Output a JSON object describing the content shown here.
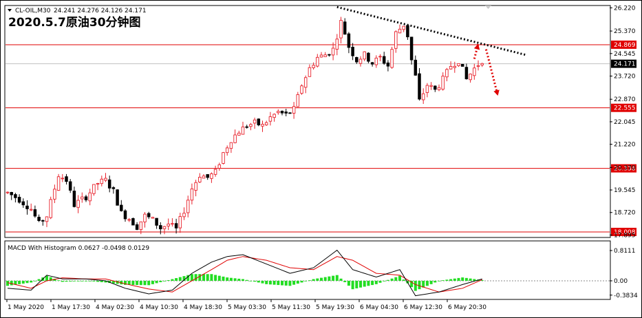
{
  "header": {
    "symbol": "CL-OIL,M30",
    "ohlc": "24.241 24.276 24.126 24.171"
  },
  "title": "2020.5.7原油30分钟图",
  "colors": {
    "bull": "#e8202a",
    "bear": "#000000",
    "level_line": "#e00000",
    "macd_line": "#000000",
    "signal_line": "#e00000",
    "hist_pos": "#22dd22",
    "hist_neg": "#22dd22",
    "trendline": "#000000",
    "arrow": "#e00000"
  },
  "chart_data": [
    {
      "type": "candlestick",
      "price_axis_ticks": [
        "26.220",
        "25.370",
        "24.545",
        "23.720",
        "22.870",
        "22.045",
        "21.220",
        "20.370",
        "19.545",
        "18.720",
        "17.895"
      ],
      "ylim": [
        17.83,
        26.28
      ],
      "current_price": "24.171",
      "levels": [
        {
          "label": "24.869",
          "value": 24.869
        },
        {
          "label": "22.555",
          "value": 22.555
        },
        {
          "label": "20.338",
          "value": 20.338
        },
        {
          "label": "18.008",
          "value": 18.008
        }
      ],
      "time_ticks": [
        "1 May 2020",
        "1 May 17:30",
        "4 May 02:30",
        "4 May 10:30",
        "4 May 18:30",
        "5 May 03:30",
        "5 May 11:30",
        "5 May 19:30",
        "6 May 04:30",
        "6 May 12:30",
        "6 May 20:30"
      ],
      "close_path": [
        [
          0,
          19.45
        ],
        [
          3,
          19.2
        ],
        [
          6,
          18.85
        ],
        [
          8,
          18.3
        ],
        [
          10,
          18.6
        ],
        [
          13,
          20.1
        ],
        [
          15,
          19.9
        ],
        [
          17,
          19.0
        ],
        [
          20,
          19.3
        ],
        [
          23,
          19.8
        ],
        [
          25,
          19.9
        ],
        [
          27,
          19.5
        ],
        [
          29,
          18.7
        ],
        [
          31,
          18.5
        ],
        [
          33,
          18.2
        ],
        [
          35,
          18.6
        ],
        [
          37,
          18.45
        ],
        [
          39,
          18.15
        ],
        [
          41,
          18.3
        ],
        [
          43,
          18.1
        ],
        [
          45,
          18.8
        ],
        [
          47,
          19.6
        ],
        [
          49,
          20.1
        ],
        [
          51,
          20.0
        ],
        [
          53,
          20.2
        ],
        [
          55,
          20.9
        ],
        [
          57,
          21.4
        ],
        [
          59,
          21.7
        ],
        [
          61,
          21.9
        ],
        [
          63,
          22.0
        ],
        [
          65,
          21.9
        ],
        [
          67,
          22.2
        ],
        [
          69,
          22.4
        ],
        [
          71,
          22.3
        ],
        [
          73,
          22.5
        ],
        [
          75,
          23.4
        ],
        [
          77,
          24.0
        ],
        [
          79,
          24.4
        ],
        [
          81,
          24.5
        ],
        [
          83,
          24.7
        ],
        [
          85,
          25.7
        ],
        [
          86,
          25.3
        ],
        [
          87,
          24.8
        ],
        [
          89,
          24.3
        ],
        [
          91,
          24.5
        ],
        [
          93,
          24.2
        ],
        [
          95,
          24.4
        ],
        [
          97,
          24.1
        ],
        [
          99,
          25.3
        ],
        [
          101,
          25.6
        ],
        [
          102,
          25.2
        ],
        [
          103,
          24.3
        ],
        [
          104,
          23.7
        ],
        [
          105,
          22.8
        ],
        [
          107,
          23.4
        ],
        [
          109,
          23.2
        ],
        [
          111,
          23.6
        ],
        [
          113,
          24.1
        ],
        [
          115,
          24.3
        ],
        [
          117,
          23.6
        ],
        [
          119,
          24.0
        ],
        [
          121,
          24.3
        ]
      ],
      "trendline": {
        "from": {
          "bar": 84,
          "price": 26.25
        },
        "to": {
          "bar": 132,
          "price": 24.5
        }
      },
      "arrow_up": {
        "from": {
          "bar": 119,
          "price": 24.35
        },
        "to": {
          "bar": 120,
          "price": 24.9
        }
      },
      "arrow_down": {
        "from": {
          "bar": 122,
          "price": 24.7
        },
        "to": {
          "bar": 125,
          "price": 23.0
        }
      }
    },
    {
      "type": "macd",
      "label": "MACD With Histogram 0.0627 -0.0498 0.0129",
      "axis_ticks": [
        "0.8111",
        "0.00",
        "-0.3834"
      ],
      "ylim": [
        -0.48,
        1.05
      ],
      "macd_path": [
        [
          0,
          -0.2
        ],
        [
          6,
          -0.25
        ],
        [
          10,
          0.15
        ],
        [
          14,
          0.05
        ],
        [
          20,
          0.05
        ],
        [
          25,
          0.0
        ],
        [
          30,
          -0.2
        ],
        [
          36,
          -0.35
        ],
        [
          42,
          -0.25
        ],
        [
          47,
          0.2
        ],
        [
          52,
          0.5
        ],
        [
          56,
          0.65
        ],
        [
          60,
          0.7
        ],
        [
          66,
          0.45
        ],
        [
          72,
          0.2
        ],
        [
          78,
          0.35
        ],
        [
          84,
          0.82
        ],
        [
          88,
          0.3
        ],
        [
          94,
          0.1
        ],
        [
          100,
          0.3
        ],
        [
          104,
          -0.4
        ],
        [
          110,
          -0.3
        ],
        [
          116,
          -0.1
        ],
        [
          121,
          0.05
        ]
      ],
      "signal_path": [
        [
          0,
          -0.05
        ],
        [
          6,
          -0.2
        ],
        [
          10,
          0.0
        ],
        [
          14,
          0.08
        ],
        [
          20,
          0.05
        ],
        [
          25,
          0.05
        ],
        [
          30,
          -0.08
        ],
        [
          36,
          -0.22
        ],
        [
          42,
          -0.3
        ],
        [
          47,
          0.0
        ],
        [
          52,
          0.3
        ],
        [
          56,
          0.55
        ],
        [
          60,
          0.65
        ],
        [
          66,
          0.55
        ],
        [
          72,
          0.35
        ],
        [
          78,
          0.3
        ],
        [
          84,
          0.65
        ],
        [
          88,
          0.55
        ],
        [
          94,
          0.2
        ],
        [
          100,
          0.15
        ],
        [
          104,
          -0.1
        ],
        [
          110,
          -0.3
        ],
        [
          116,
          -0.2
        ],
        [
          121,
          0.03
        ]
      ]
    }
  ]
}
